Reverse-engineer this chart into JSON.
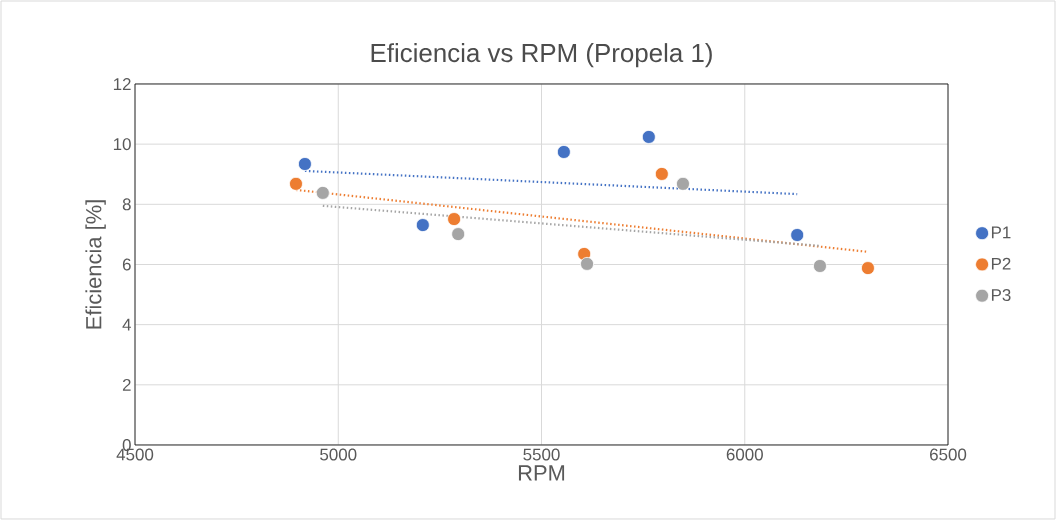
{
  "chart_data": {
    "type": "scatter",
    "title": "Eficiencia vs RPM (Propela 1)",
    "xlabel": "RPM",
    "ylabel": "Eficiencia [%]",
    "xlim": [
      4500,
      6500
    ],
    "xticks": [
      4500,
      5000,
      5500,
      6000,
      6500
    ],
    "ylim": [
      0,
      12
    ],
    "yticks": [
      0,
      2,
      4,
      6,
      8,
      10,
      12
    ],
    "grid": true,
    "legend": "right",
    "series": [
      {
        "type": "line",
        "marker": "none",
        "color": "#4472c4",
        "line_style": "dotted",
        "x": [
          4918,
          6129
        ],
        "values": [
          9.11,
          8.34
        ]
      },
      {
        "type": "line",
        "marker": "none",
        "color": "#ed7d31",
        "line_style": "dotted",
        "x": [
          4896,
          6303
        ],
        "values": [
          8.48,
          6.42
        ]
      },
      {
        "type": "line",
        "marker": "none",
        "color": "#a5a5a5",
        "line_style": "dotted",
        "x": [
          4962,
          6185
        ],
        "values": [
          7.95,
          6.62
        ]
      },
      {
        "name": "P1",
        "marker": "circle",
        "color": "#4472c4",
        "x": [
          4918,
          5208,
          5555,
          5764,
          6129
        ],
        "values": [
          9.34,
          7.31,
          9.74,
          10.24,
          6.98
        ]
      },
      {
        "name": "P2",
        "marker": "circle",
        "color": "#ed7d31",
        "x": [
          4896,
          5285,
          5605,
          5796,
          6303
        ],
        "values": [
          8.68,
          7.51,
          6.35,
          9.01,
          5.88
        ]
      },
      {
        "name": "P3",
        "marker": "circle",
        "color": "#a5a5a5",
        "x": [
          4962,
          5295,
          5612,
          5848,
          6185
        ],
        "values": [
          8.38,
          7.01,
          6.02,
          8.68,
          5.95
        ]
      }
    ]
  }
}
